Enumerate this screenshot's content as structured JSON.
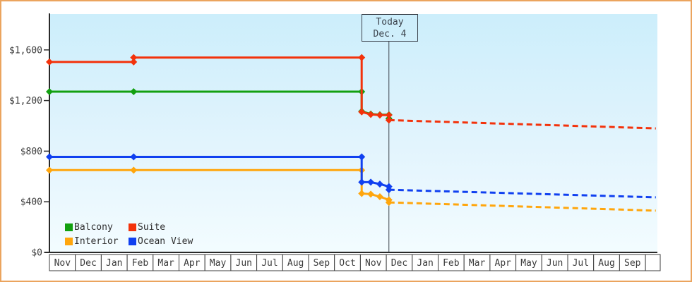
{
  "widget": {
    "border_color": "#eba45e",
    "background_color": "#ffffff",
    "plot_gradient_top": "#cceefb",
    "plot_gradient_bottom": "#f3fcff",
    "axis_color": "#2a2a2a",
    "text_color": "#3a3a3a"
  },
  "chart_data": {
    "type": "line",
    "description_of_visible_content": "Price history lines for four cabin categories with solid history, diamond markers, a Today divider, and dashed forecast lines",
    "today_label": {
      "line1": "Today",
      "line2": "Dec. 4"
    },
    "today_month_index": 13.1,
    "y_axis": {
      "tick_labels": [
        "$0",
        "$400",
        "$800",
        "$1,200",
        "$1,600"
      ],
      "tick_values": [
        0,
        400,
        800,
        1200,
        1600
      ],
      "ylim": [
        0,
        1880
      ],
      "grid": "off"
    },
    "x_axis": {
      "month_labels": [
        "Nov",
        "Dec",
        "Jan",
        "Feb",
        "Mar",
        "Apr",
        "May",
        "Jun",
        "Jul",
        "Aug",
        "Sep",
        "Oct",
        "Nov",
        "Dec",
        "Jan",
        "Feb",
        "Mar",
        "Apr",
        "May",
        "Jun",
        "Jul",
        "Aug",
        "Sep"
      ]
    },
    "legend": {
      "position": "bottom-left",
      "order": [
        "Balcony",
        "Suite",
        "Interior",
        "Ocean View"
      ]
    },
    "series": [
      {
        "name": "Balcony",
        "color": "#12a010",
        "history": [
          [
            0,
            1270
          ],
          [
            3.25,
            1270
          ],
          [
            12.05,
            1270
          ],
          [
            12.05,
            1115
          ],
          [
            12.4,
            1093
          ],
          [
            12.75,
            1088
          ],
          [
            13.1,
            1088
          ],
          [
            13.1,
            1058
          ]
        ],
        "forecast": []
      },
      {
        "name": "Interior",
        "color": "#ffa60d",
        "history": [
          [
            0,
            650
          ],
          [
            3.25,
            650
          ],
          [
            12.05,
            650
          ],
          [
            12.05,
            465
          ],
          [
            12.4,
            460
          ],
          [
            12.75,
            440
          ],
          [
            13.1,
            415
          ],
          [
            13.1,
            395
          ]
        ],
        "forecast": [
          [
            13.1,
            395
          ],
          [
            23.4,
            330
          ]
        ]
      },
      {
        "name": "Ocean View",
        "color": "#1040f0",
        "history": [
          [
            0,
            755
          ],
          [
            3.25,
            755
          ],
          [
            12.05,
            755
          ],
          [
            12.05,
            555
          ],
          [
            12.4,
            555
          ],
          [
            12.75,
            540
          ],
          [
            13.1,
            520
          ],
          [
            13.1,
            495
          ]
        ],
        "forecast": [
          [
            13.1,
            495
          ],
          [
            23.4,
            435
          ]
        ]
      },
      {
        "name": "Suite",
        "color": "#f3320b",
        "history": [
          [
            0,
            1505
          ],
          [
            3.25,
            1505
          ],
          [
            3.25,
            1540
          ],
          [
            12.05,
            1540
          ],
          [
            12.05,
            1110
          ],
          [
            12.4,
            1090
          ],
          [
            12.75,
            1085
          ],
          [
            13.1,
            1085
          ],
          [
            13.1,
            1045
          ]
        ],
        "forecast": [
          [
            13.1,
            1045
          ],
          [
            23.4,
            980
          ]
        ]
      }
    ]
  }
}
